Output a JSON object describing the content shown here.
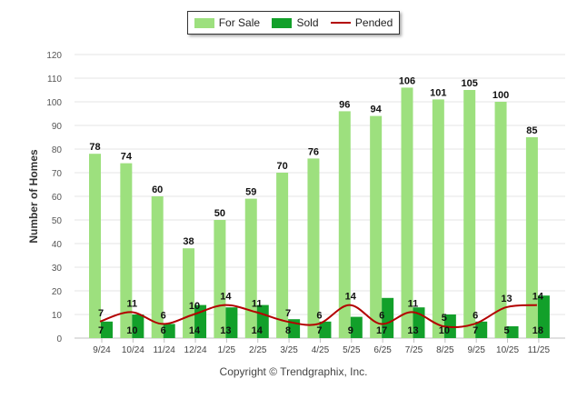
{
  "legend": {
    "for_sale": "For Sale",
    "sold": "Sold",
    "pended": "Pended"
  },
  "colors": {
    "for_sale": "#9de07e",
    "sold": "#12a02a",
    "pended": "#b30000",
    "grid": "#e6e6e6",
    "axis": "#c0c0c0"
  },
  "copyright": "Copyright © Trendgraphix, Inc.",
  "chart_data": {
    "type": "bar",
    "title": "",
    "xlabel": "",
    "ylabel": "Number of Homes",
    "ylim": [
      0,
      120
    ],
    "yticks": [
      0,
      10,
      20,
      30,
      40,
      50,
      60,
      70,
      80,
      90,
      100,
      110,
      120
    ],
    "grid": true,
    "legend_position": "top-center",
    "categories": [
      "9/24",
      "10/24",
      "11/24",
      "12/24",
      "1/25",
      "2/25",
      "3/25",
      "4/25",
      "5/25",
      "6/25",
      "7/25",
      "8/25",
      "9/25",
      "10/25",
      "11/25"
    ],
    "series": [
      {
        "name": "For Sale",
        "kind": "bar",
        "values": [
          78,
          74,
          60,
          38,
          50,
          59,
          70,
          76,
          96,
          94,
          106,
          101,
          105,
          100,
          85
        ]
      },
      {
        "name": "Sold",
        "kind": "bar",
        "values": [
          7,
          10,
          6,
          14,
          13,
          14,
          8,
          7,
          9,
          17,
          13,
          10,
          7,
          5,
          18
        ]
      },
      {
        "name": "Pended",
        "kind": "line",
        "values": [
          7,
          11,
          6,
          10,
          14,
          11,
          7,
          6,
          14,
          6,
          11,
          5,
          6,
          13,
          14
        ]
      }
    ]
  }
}
